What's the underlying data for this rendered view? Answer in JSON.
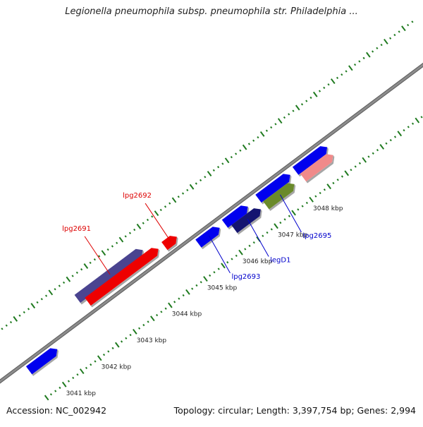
{
  "title": "Legionella pneumophila subsp. pneumophila str. Philadelphia ...",
  "accession": "Accession: NC_002942",
  "summary": "Topology: circular; Length: 3,397,754 bp; Genes: 2,994",
  "colors": {
    "backbone": "#8c8c8c",
    "tick": "#1f7a1f",
    "label_red": "#dd0000",
    "label_blue": "#0000cc",
    "gene_blue": "#0000ee",
    "gene_red": "#ee0000",
    "gene_purple": "#4a4490",
    "gene_navy": "#141470",
    "gene_olive": "#6a8a2a",
    "gene_pink": "#f08a8a"
  },
  "ruler": [
    "3041 kbp",
    "3042 kbp",
    "3043 kbp",
    "3044 kbp",
    "3045 kbp",
    "3046 kbp",
    "3047 kbp",
    "3048 kbp"
  ],
  "genes": [
    {
      "id": "gene-3040-left",
      "strand": "-",
      "start_kbp": 3040.55,
      "end_kbp": 3041.35,
      "color": "gene_blue",
      "label": null
    },
    {
      "id": "lpg2691",
      "strand": "+",
      "start_kbp": 3042.4,
      "end_kbp": 3044.25,
      "color": "gene_purple",
      "label": "lpg2691"
    },
    {
      "id": "gene-red-minus",
      "strand": "-",
      "start_kbp": 3042.55,
      "end_kbp": 3044.55,
      "color": "gene_red",
      "label": null
    },
    {
      "id": "lpg2692",
      "strand": "+",
      "start_kbp": 3044.7,
      "end_kbp": 3045.05,
      "color": "gene_red",
      "label": "lpg2692"
    },
    {
      "id": "lpg2693",
      "strand": "-",
      "start_kbp": 3045.35,
      "end_kbp": 3045.95,
      "color": "gene_blue",
      "label": "lpg2693"
    },
    {
      "id": "gene-blue-2",
      "strand": "-",
      "start_kbp": 3046.1,
      "end_kbp": 3046.75,
      "color": "gene_blue",
      "label": null
    },
    {
      "id": "legD1",
      "strand": "-",
      "start_kbp": 3046.2,
      "end_kbp": 3046.95,
      "color": "gene_navy",
      "label": "legD1"
    },
    {
      "id": "gene-blue-3",
      "strand": "-",
      "start_kbp": 3047.05,
      "end_kbp": 3047.95,
      "color": "gene_blue",
      "label": null
    },
    {
      "id": "lpg2695",
      "strand": "-",
      "start_kbp": 3047.1,
      "end_kbp": 3047.9,
      "color": "gene_olive",
      "label": "lpg2695"
    },
    {
      "id": "gene-blue-4",
      "strand": "-",
      "start_kbp": 3048.1,
      "end_kbp": 3049.0,
      "color": "gene_blue",
      "label": null
    },
    {
      "id": "gene-pink",
      "strand": "-",
      "start_kbp": 3048.15,
      "end_kbp": 3049.0,
      "color": "gene_pink",
      "label": null
    }
  ]
}
